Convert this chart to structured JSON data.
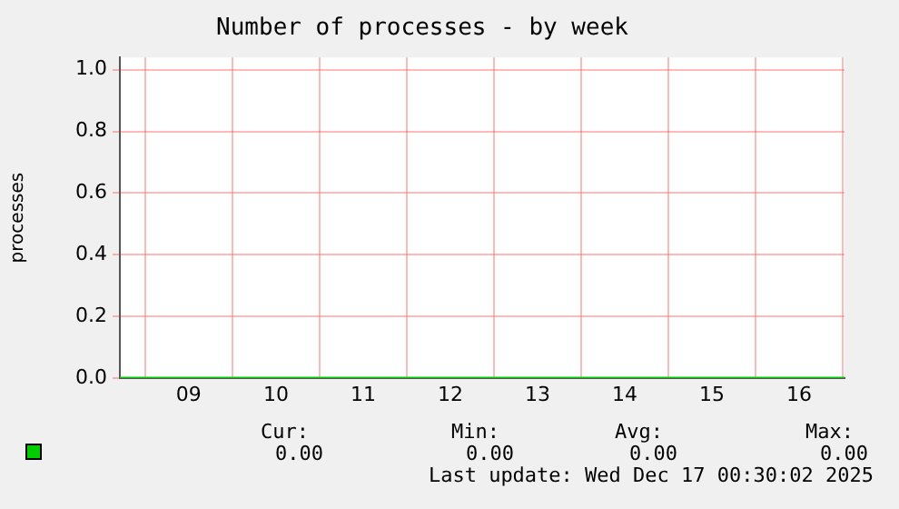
{
  "chart_data": {
    "type": "line",
    "title": "Number of processes - by week",
    "ylabel": "processes",
    "x": [
      8.71,
      17.02
    ],
    "series": [
      {
        "color": "#00cc00",
        "values": [
          0,
          0
        ]
      }
    ],
    "xlim": [
      8.71,
      17.02
    ],
    "xticks": [
      {
        "value": 9,
        "label": null
      },
      {
        "value": 9.5,
        "label": "09"
      },
      {
        "value": 10,
        "label": null
      },
      {
        "value": 10.5,
        "label": "10"
      },
      {
        "value": 11,
        "label": null
      },
      {
        "value": 11.5,
        "label": "11"
      },
      {
        "value": 12,
        "label": null
      },
      {
        "value": 12.5,
        "label": "12"
      },
      {
        "value": 13,
        "label": null
      },
      {
        "value": 13.5,
        "label": "13"
      },
      {
        "value": 14,
        "label": null
      },
      {
        "value": 14.5,
        "label": "14"
      },
      {
        "value": 15,
        "label": null
      },
      {
        "value": 15.5,
        "label": "15"
      },
      {
        "value": 16,
        "label": null
      },
      {
        "value": 16.5,
        "label": "16"
      },
      {
        "value": 17,
        "label": null
      }
    ],
    "ylim": [
      0,
      1.04
    ],
    "yticks": [
      {
        "value": 0,
        "label": "0.0"
      },
      {
        "value": 0.2,
        "label": "0.2"
      },
      {
        "value": 0.4,
        "label": "0.4"
      },
      {
        "value": 0.6,
        "label": "0.6"
      },
      {
        "value": 0.8,
        "label": "0.8"
      },
      {
        "value": 1,
        "label": "1.0"
      }
    ],
    "grid": true,
    "marker": "none",
    "annotations": [
      "Cur:",
      "Min:",
      "Avg:",
      "Max:",
      "0.00",
      "0.00",
      "0.00",
      "0.00",
      "Last update: Wed Dec 17 00:30:02 2025"
    ]
  }
}
